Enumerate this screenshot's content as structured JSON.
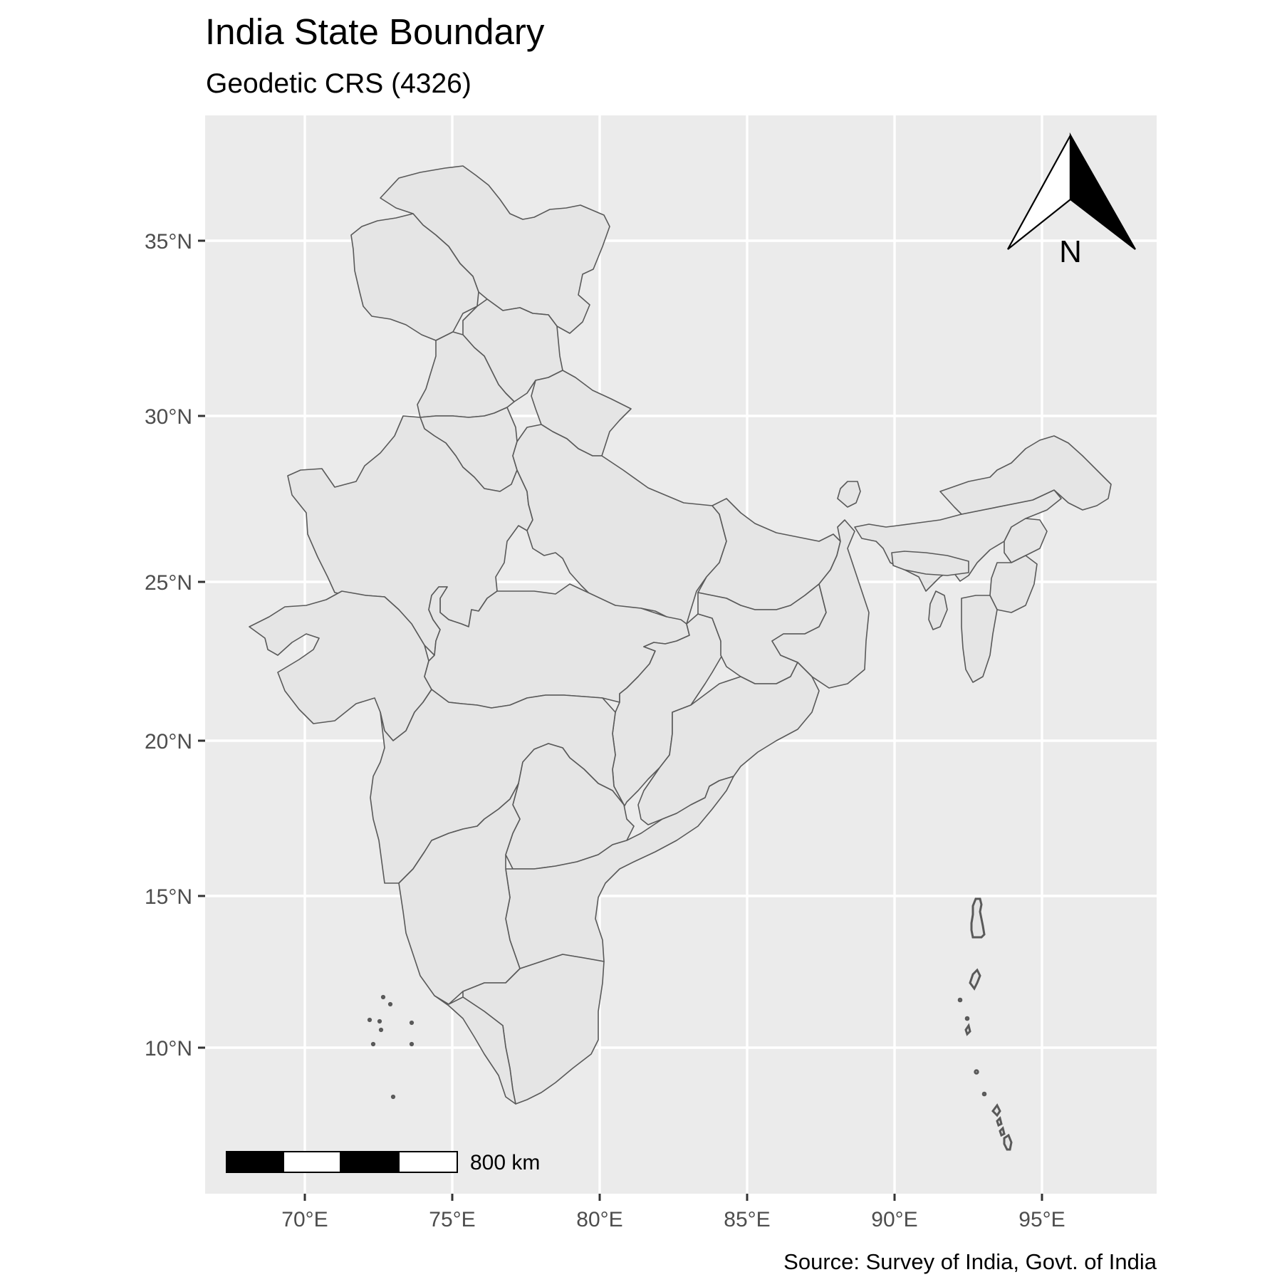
{
  "title": "India State Boundary",
  "subtitle": "Geodetic CRS (4326)",
  "caption": "Source: Survey of India, Govt. of India",
  "colors": {
    "panel_background": "#ebebeb",
    "grid": "#ffffff",
    "state_fill": "#e5e5e5",
    "state_border": "#595959",
    "axis_text": "#4d4d4d"
  },
  "axes": {
    "x_ticks": [
      "70°E",
      "75°E",
      "80°E",
      "85°E",
      "90°E",
      "95°E"
    ],
    "y_ticks": [
      "35°N",
      "30°N",
      "25°N",
      "20°N",
      "15°N",
      "10°N"
    ]
  },
  "north_arrow": {
    "label": "N"
  },
  "scale_bar": {
    "label": "800 km"
  },
  "map": {
    "features": "India state boundaries, Lakshadweep islands, Andaman and Nicobar islands"
  }
}
